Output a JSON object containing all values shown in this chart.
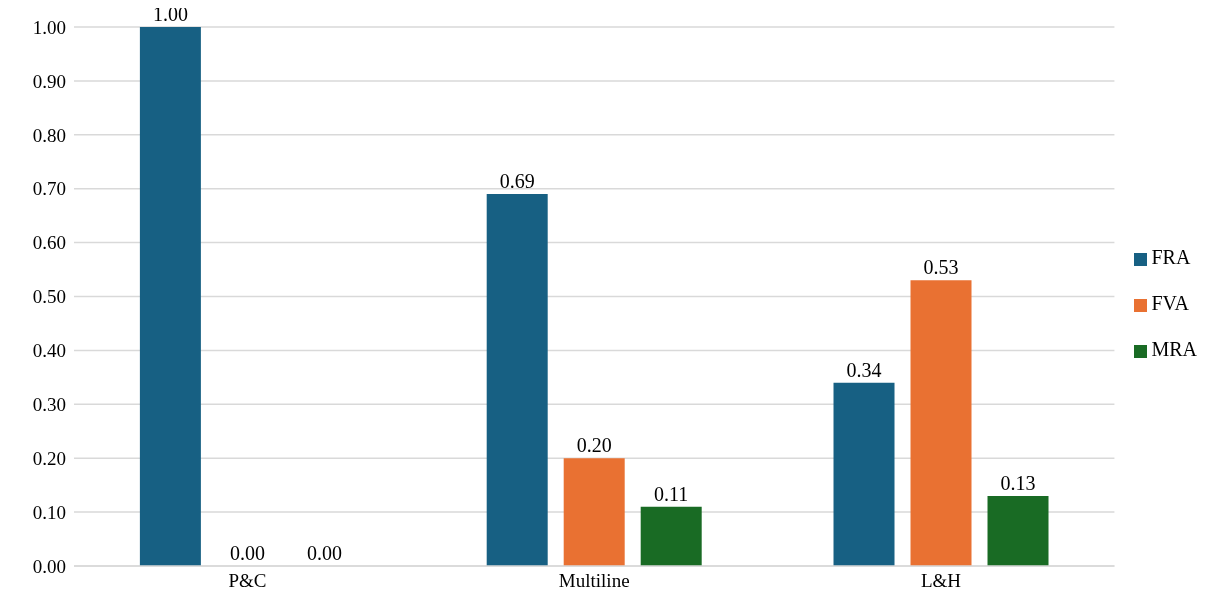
{
  "chart_data": {
    "type": "bar",
    "categories": [
      "P&C",
      "Multiline",
      "L&H"
    ],
    "series": [
      {
        "name": "FRA",
        "color": "#176083",
        "values": [
          1,
          0.69,
          0.34
        ],
        "value_labels": [
          "1.00",
          "0.69",
          "0.34"
        ]
      },
      {
        "name": "FVA",
        "color": "#e97132",
        "values": [
          0,
          0.2,
          0.53
        ],
        "value_labels": [
          "0.00",
          "0.20",
          "0.53"
        ]
      },
      {
        "name": "MRA",
        "color": "#196b24",
        "values": [
          0,
          0.11,
          0.13
        ],
        "value_labels": [
          "0.00",
          "0.11",
          "0.13"
        ]
      }
    ],
    "ylim": [
      0,
      1
    ],
    "yticks": [
      {
        "value": 0,
        "label": "0.00"
      },
      {
        "value": 0.1,
        "label": "0.10"
      },
      {
        "value": 0.2,
        "label": "0.20"
      },
      {
        "value": 0.3,
        "label": "0.30"
      },
      {
        "value": 0.4,
        "label": "0.40"
      },
      {
        "value": 0.5,
        "label": "0.50"
      },
      {
        "value": 0.6,
        "label": "0.60"
      },
      {
        "value": 0.7,
        "label": "0.70"
      },
      {
        "value": 0.8,
        "label": "0.80"
      },
      {
        "value": 0.9,
        "label": "0.90"
      },
      {
        "value": 1,
        "label": "1.00"
      }
    ],
    "grid": "y",
    "legend": "right"
  }
}
